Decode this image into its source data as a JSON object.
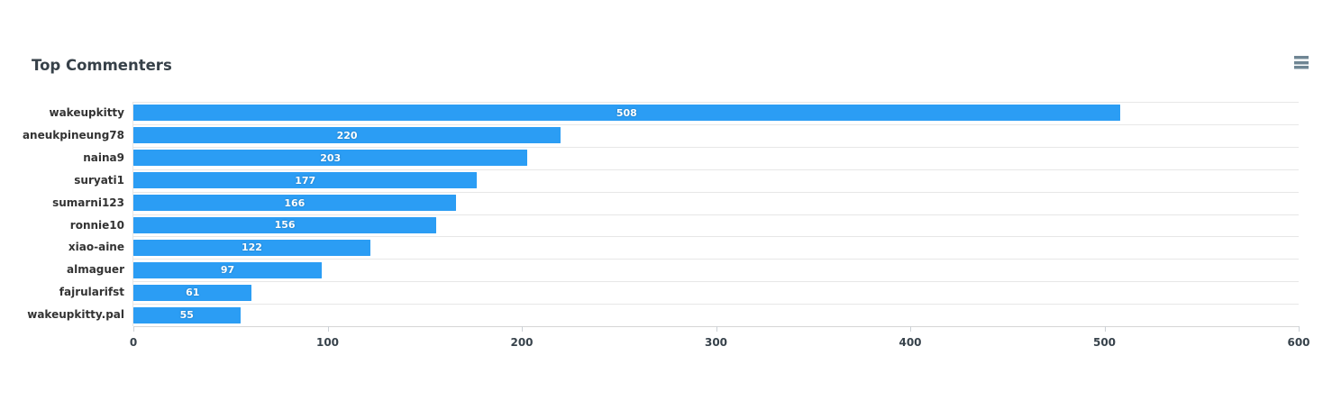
{
  "header": {
    "title": "Top Commenters"
  },
  "chart_data": {
    "type": "bar",
    "orientation": "horizontal",
    "title": "Top Commenters",
    "categories": [
      "wakeupkitty",
      "aneukpineung78",
      "naina9",
      "suryati1",
      "sumarni123",
      "ronnie10",
      "xiao-aine",
      "almaguer",
      "fajrularifst",
      "wakeupkitty.pal"
    ],
    "values": [
      508,
      220,
      203,
      177,
      166,
      156,
      122,
      97,
      61,
      55
    ],
    "xlabel": "",
    "ylabel": "",
    "xlim": [
      0,
      600
    ],
    "x_ticks": [
      0,
      100,
      200,
      300,
      400,
      500,
      600
    ],
    "grid": "horizontal category separators only",
    "legend": "none",
    "value_labels": "inside-center",
    "colors": {
      "bar": "#2b9df4",
      "value_label": "#ffffff",
      "category_label": "#333333",
      "tick_label": "#37424b",
      "title": "#374149",
      "gridline": "#e7e7e7",
      "axis_line": "#d6d6d6",
      "menu_icon": "#6f8694"
    }
  }
}
